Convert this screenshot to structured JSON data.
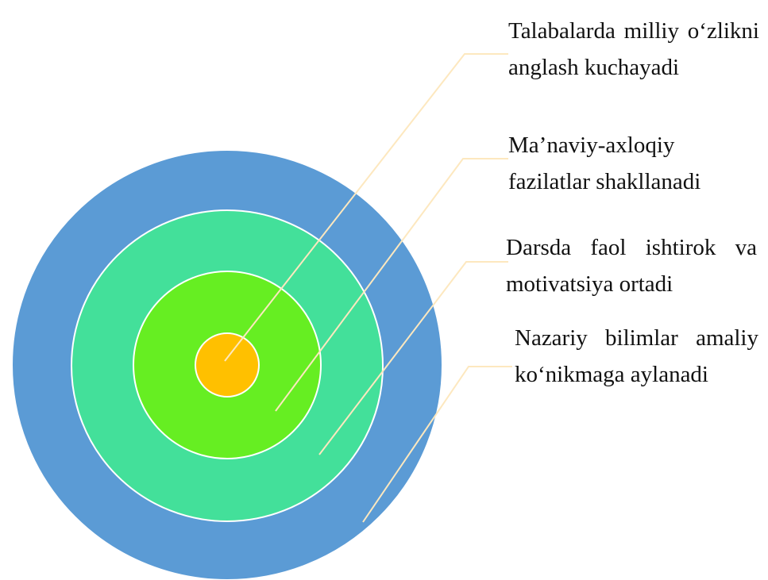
{
  "labels": [
    {
      "text": "Talabalarda milliy o‘zlikni anglash kuchayadi"
    },
    {
      "text": "Ma’naviy-axloqiy fazilatlar shakllanadi"
    },
    {
      "text": "Darsda faol ishtirok va motivatsiya ortadi"
    },
    {
      "text": "Nazariy bilimlar amaliy ko‘nikmaga aylanadi"
    }
  ]
}
